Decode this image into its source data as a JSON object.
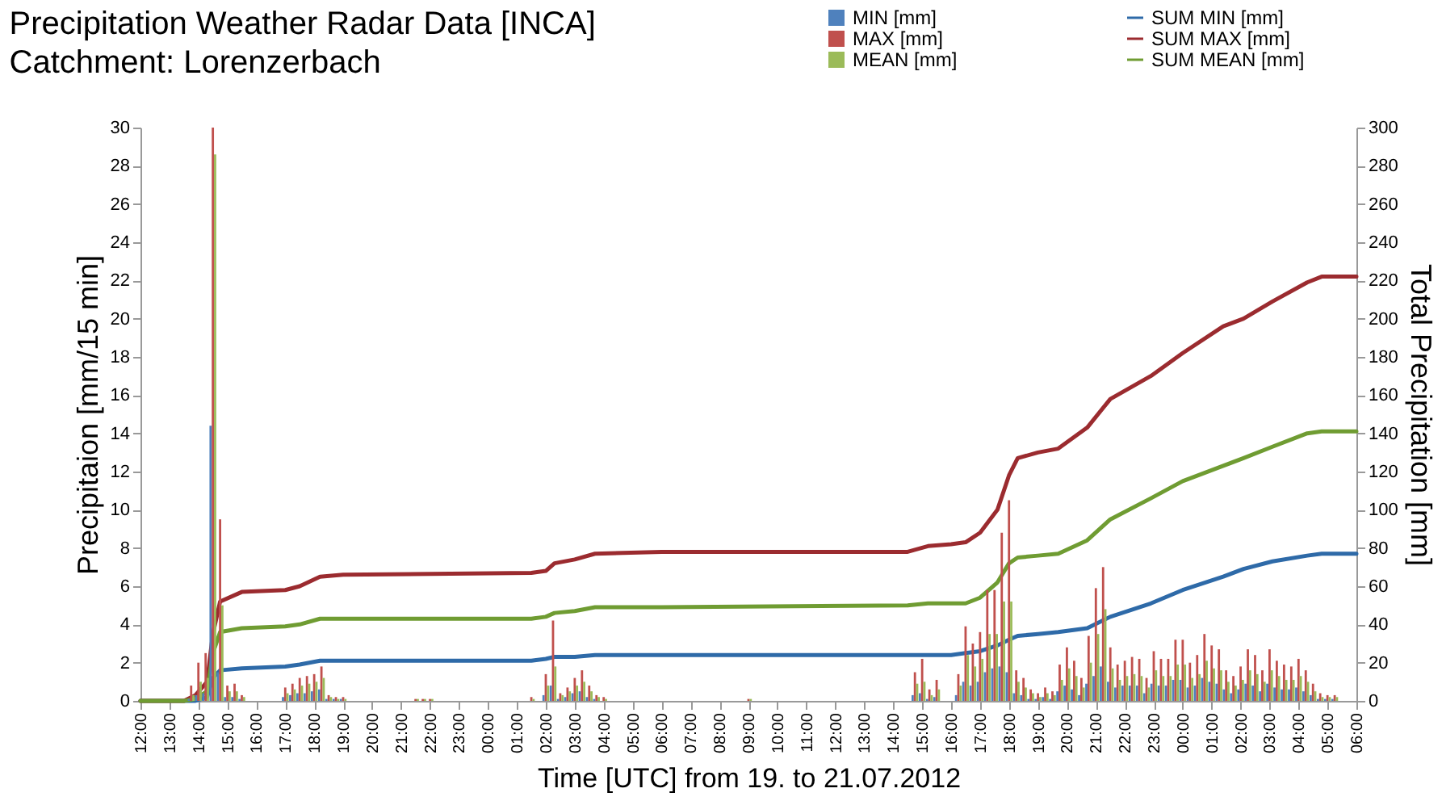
{
  "chart_data": {
    "type": "bar",
    "title": "Precipitation Weather Radar Data [INCA]",
    "subtitle": "Catchment: Lorenzerbach",
    "xlabel": "Time [UTC] from 19. to 21.07.2012",
    "ylabel": "Precipitaion [mm/15 min]",
    "y2label": "Total Precipitation [mm]",
    "xlim": [
      "2012-07-19T12:00",
      "2012-07-21T06:00"
    ],
    "xticks": [
      {
        "value": "2012-07-19T12:00",
        "label": "12:00"
      },
      {
        "value": "2012-07-19T13:00",
        "label": "13:00"
      },
      {
        "value": "2012-07-19T14:00",
        "label": "14:00"
      },
      {
        "value": "2012-07-19T15:00",
        "label": "15:00"
      },
      {
        "value": "2012-07-19T16:00",
        "label": "16:00"
      },
      {
        "value": "2012-07-19T17:00",
        "label": "17:00"
      },
      {
        "value": "2012-07-19T18:00",
        "label": "18:00"
      },
      {
        "value": "2012-07-19T19:00",
        "label": "19:00"
      },
      {
        "value": "2012-07-19T20:00",
        "label": "20:00"
      },
      {
        "value": "2012-07-19T21:00",
        "label": "21:00"
      },
      {
        "value": "2012-07-19T22:00",
        "label": "22:00"
      },
      {
        "value": "2012-07-19T23:00",
        "label": "23:00"
      },
      {
        "value": "2012-07-20T00:00",
        "label": "00:00"
      },
      {
        "value": "2012-07-20T01:00",
        "label": "01:00"
      },
      {
        "value": "2012-07-20T02:00",
        "label": "02:00"
      },
      {
        "value": "2012-07-20T03:00",
        "label": "03:00"
      },
      {
        "value": "2012-07-20T04:00",
        "label": "04:00"
      },
      {
        "value": "2012-07-20T05:00",
        "label": "05:00"
      },
      {
        "value": "2012-07-20T06:00",
        "label": "06:00"
      },
      {
        "value": "2012-07-20T07:00",
        "label": "07:00"
      },
      {
        "value": "2012-07-20T08:00",
        "label": "08:00"
      },
      {
        "value": "2012-07-20T09:00",
        "label": "09:00"
      },
      {
        "value": "2012-07-20T10:00",
        "label": "10:00"
      },
      {
        "value": "2012-07-20T11:00",
        "label": "11:00"
      },
      {
        "value": "2012-07-20T12:00",
        "label": "12:00"
      },
      {
        "value": "2012-07-20T13:00",
        "label": "13:00"
      },
      {
        "value": "2012-07-20T14:00",
        "label": "14:00"
      },
      {
        "value": "2012-07-20T15:00",
        "label": "15:00"
      },
      {
        "value": "2012-07-20T16:00",
        "label": "16:00"
      },
      {
        "value": "2012-07-20T17:00",
        "label": "17:00"
      },
      {
        "value": "2012-07-20T18:00",
        "label": "18:00"
      },
      {
        "value": "2012-07-20T19:00",
        "label": "19:00"
      },
      {
        "value": "2012-07-20T20:00",
        "label": "20:00"
      },
      {
        "value": "2012-07-20T21:00",
        "label": "21:00"
      },
      {
        "value": "2012-07-20T22:00",
        "label": "22:00"
      },
      {
        "value": "2012-07-20T23:00",
        "label": "23:00"
      },
      {
        "value": "2012-07-21T00:00",
        "label": "00:00"
      },
      {
        "value": "2012-07-21T01:00",
        "label": "01:00"
      },
      {
        "value": "2012-07-21T02:00",
        "label": "02:00"
      },
      {
        "value": "2012-07-21T03:00",
        "label": "03:00"
      },
      {
        "value": "2012-07-21T04:00",
        "label": "04:00"
      },
      {
        "value": "2012-07-21T05:00",
        "label": "05:00"
      },
      {
        "value": "2012-07-21T06:00",
        "label": "06:00"
      }
    ],
    "ylim": [
      0,
      30
    ],
    "yticks": [
      0,
      2,
      4,
      6,
      8,
      10,
      12,
      14,
      16,
      18,
      20,
      22,
      24,
      26,
      28,
      30
    ],
    "y2lim": [
      0,
      300
    ],
    "y2ticks": [
      0,
      20,
      40,
      60,
      80,
      100,
      120,
      140,
      160,
      180,
      200,
      220,
      240,
      260,
      280,
      300
    ],
    "grid": false,
    "legend": "top right",
    "x": [
      "2012-07-19T13:45",
      "2012-07-19T14:00",
      "2012-07-19T14:15",
      "2012-07-19T14:30",
      "2012-07-19T14:45",
      "2012-07-19T15:00",
      "2012-07-19T15:15",
      "2012-07-19T15:30",
      "2012-07-19T17:00",
      "2012-07-19T17:15",
      "2012-07-19T17:30",
      "2012-07-19T17:45",
      "2012-07-19T18:00",
      "2012-07-19T18:15",
      "2012-07-19T18:30",
      "2012-07-19T18:45",
      "2012-07-19T19:00",
      "2012-07-19T21:30",
      "2012-07-19T21:45",
      "2012-07-19T22:00",
      "2012-07-20T01:30",
      "2012-07-20T02:00",
      "2012-07-20T02:15",
      "2012-07-20T02:30",
      "2012-07-20T02:45",
      "2012-07-20T03:00",
      "2012-07-20T03:15",
      "2012-07-20T03:30",
      "2012-07-20T03:45",
      "2012-07-20T04:00",
      "2012-07-20T09:00",
      "2012-07-20T14:45",
      "2012-07-20T15:00",
      "2012-07-20T15:15",
      "2012-07-20T15:30",
      "2012-07-20T16:15",
      "2012-07-20T16:30",
      "2012-07-20T16:45",
      "2012-07-20T17:00",
      "2012-07-20T17:15",
      "2012-07-20T17:30",
      "2012-07-20T17:45",
      "2012-07-20T18:00",
      "2012-07-20T18:15",
      "2012-07-20T18:30",
      "2012-07-20T18:45",
      "2012-07-20T19:00",
      "2012-07-20T19:15",
      "2012-07-20T19:30",
      "2012-07-20T19:45",
      "2012-07-20T20:00",
      "2012-07-20T20:15",
      "2012-07-20T20:30",
      "2012-07-20T20:45",
      "2012-07-20T21:00",
      "2012-07-20T21:15",
      "2012-07-20T21:30",
      "2012-07-20T21:45",
      "2012-07-20T22:00",
      "2012-07-20T22:15",
      "2012-07-20T22:30",
      "2012-07-20T22:45",
      "2012-07-20T23:00",
      "2012-07-20T23:15",
      "2012-07-20T23:30",
      "2012-07-20T23:45",
      "2012-07-21T00:00",
      "2012-07-21T00:15",
      "2012-07-21T00:30",
      "2012-07-21T00:45",
      "2012-07-21T01:00",
      "2012-07-21T01:15",
      "2012-07-21T01:30",
      "2012-07-21T01:45",
      "2012-07-21T02:00",
      "2012-07-21T02:15",
      "2012-07-21T02:30",
      "2012-07-21T02:45",
      "2012-07-21T03:00",
      "2012-07-21T03:15",
      "2012-07-21T03:30",
      "2012-07-21T03:45",
      "2012-07-21T04:00",
      "2012-07-21T04:15",
      "2012-07-21T04:30",
      "2012-07-21T04:45",
      "2012-07-21T05:00",
      "2012-07-21T05:15"
    ],
    "series": [
      {
        "name": "MIN [mm]",
        "color": "#4f81bd",
        "values": [
          0.1,
          0.3,
          0.4,
          14.4,
          1.5,
          0.2,
          0.2,
          0.1,
          0.2,
          0.3,
          0.4,
          0.4,
          0.5,
          0.6,
          0.1,
          0.1,
          0.1,
          0,
          0,
          0,
          0,
          0.3,
          0.8,
          0.1,
          0.2,
          0.4,
          0.5,
          0.2,
          0.1,
          0,
          0,
          0.3,
          0.4,
          0.1,
          0.2,
          0.3,
          1.0,
          0.8,
          1.0,
          1.5,
          1.7,
          1.8,
          1.5,
          0.4,
          0.3,
          0.1,
          0.1,
          0.2,
          0.1,
          0.5,
          0.8,
          0.6,
          0.3,
          0.9,
          1.3,
          1.8,
          1.0,
          0.7,
          0.8,
          0.8,
          0.8,
          0.4,
          0.9,
          0.8,
          0.8,
          1.1,
          1.1,
          0.7,
          0.8,
          1.2,
          1.0,
          0.9,
          0.6,
          0.4,
          0.6,
          0.9,
          0.8,
          0.5,
          0.9,
          0.7,
          0.6,
          0.6,
          0.7,
          0.5,
          0.3,
          0.1,
          0.1,
          0.1
        ]
      },
      {
        "name": "MAX [mm]",
        "color": "#c0504d",
        "values": [
          0.8,
          2.0,
          2.5,
          30,
          9.5,
          0.8,
          0.9,
          0.3,
          0.7,
          0.9,
          1.2,
          1.3,
          1.4,
          1.8,
          0.3,
          0.2,
          0.2,
          0.1,
          0.1,
          0.1,
          0.2,
          1.4,
          4.2,
          0.4,
          0.7,
          1.2,
          1.6,
          0.8,
          0.3,
          0.2,
          0.1,
          1.5,
          2.2,
          0.6,
          1.1,
          1.4,
          3.9,
          3.0,
          3.6,
          5.8,
          5.8,
          8.8,
          10.5,
          1.6,
          1.2,
          0.6,
          0.4,
          0.7,
          0.5,
          1.9,
          2.8,
          2.1,
          1.2,
          3.4,
          5.9,
          7.0,
          2.8,
          1.9,
          2.1,
          2.3,
          2.2,
          1.2,
          2.6,
          2.2,
          2.2,
          3.2,
          3.2,
          2.0,
          2.4,
          3.5,
          2.9,
          2.7,
          1.6,
          1.3,
          1.8,
          2.7,
          2.4,
          1.6,
          2.7,
          2.1,
          1.9,
          1.8,
          2.2,
          1.6,
          0.9,
          0.4,
          0.3,
          0.3
        ]
      },
      {
        "name": "MEAN [mm]",
        "color": "#9bbb59",
        "values": [
          0.3,
          1.0,
          1.2,
          28.6,
          5.0,
          0.5,
          0.5,
          0.2,
          0.4,
          0.6,
          0.8,
          0.9,
          1.0,
          1.2,
          0.2,
          0.1,
          0.1,
          0.1,
          0.1,
          0.1,
          0.1,
          0.8,
          1.8,
          0.3,
          0.5,
          0.8,
          1.0,
          0.5,
          0.2,
          0.1,
          0.1,
          0.9,
          1.0,
          0.3,
          0.6,
          0.8,
          2.4,
          1.8,
          2.2,
          3.5,
          3.5,
          5.2,
          5.2,
          1.0,
          0.7,
          0.4,
          0.2,
          0.4,
          0.3,
          1.1,
          1.7,
          1.3,
          0.7,
          2.0,
          3.5,
          4.8,
          1.7,
          1.1,
          1.3,
          1.4,
          1.3,
          0.7,
          1.6,
          1.3,
          1.3,
          1.9,
          1.9,
          1.2,
          1.4,
          2.1,
          1.7,
          1.6,
          1.0,
          0.8,
          1.1,
          1.6,
          1.4,
          1.0,
          1.6,
          1.3,
          1.1,
          1.1,
          1.3,
          1.0,
          0.5,
          0.2,
          0.2,
          0.2
        ]
      },
      {
        "name": "SUM MIN [mm]",
        "type": "line",
        "axis": "y2",
        "color": "#2e6aa8",
        "x": [
          "2012-07-19T12:00",
          "2012-07-19T13:30",
          "2012-07-19T13:54",
          "2012-07-19T14:18",
          "2012-07-19T14:30",
          "2012-07-19T14:45",
          "2012-07-19T15:30",
          "2012-07-19T17:00",
          "2012-07-19T17:30",
          "2012-07-19T18:12",
          "2012-07-19T19:00",
          "2012-07-20T01:30",
          "2012-07-20T02:00",
          "2012-07-20T02:18",
          "2012-07-20T03:00",
          "2012-07-20T03:42",
          "2012-07-20T06:00",
          "2012-07-20T14:30",
          "2012-07-20T15:12",
          "2012-07-20T16:00",
          "2012-07-20T16:30",
          "2012-07-20T17:00",
          "2012-07-20T17:36",
          "2012-07-20T18:00",
          "2012-07-20T18:18",
          "2012-07-20T19:00",
          "2012-07-20T19:42",
          "2012-07-20T20:42",
          "2012-07-20T21:30",
          "2012-07-20T22:54",
          "2012-07-21T00:00",
          "2012-07-21T01:24",
          "2012-07-21T02:06",
          "2012-07-21T03:06",
          "2012-07-21T04:18",
          "2012-07-21T04:48",
          "2012-07-21T06:00"
        ],
        "values": [
          0,
          0,
          0,
          2,
          12,
          16,
          17,
          18,
          19,
          21,
          21,
          21,
          22,
          23,
          23,
          24,
          24,
          24,
          24,
          24,
          25,
          26,
          29,
          32,
          34,
          35,
          36,
          38,
          44,
          51,
          58,
          65,
          69,
          73,
          76,
          77,
          77
        ]
      },
      {
        "name": "SUM MAX [mm]",
        "type": "line",
        "axis": "y2",
        "color": "#9b2b2f",
        "x": [
          "2012-07-19T12:00",
          "2012-07-19T13:30",
          "2012-07-19T13:54",
          "2012-07-19T14:18",
          "2012-07-19T14:30",
          "2012-07-19T14:45",
          "2012-07-19T15:30",
          "2012-07-19T17:00",
          "2012-07-19T17:30",
          "2012-07-19T18:12",
          "2012-07-19T19:00",
          "2012-07-20T01:30",
          "2012-07-20T02:00",
          "2012-07-20T02:18",
          "2012-07-20T03:00",
          "2012-07-20T03:42",
          "2012-07-20T06:00",
          "2012-07-20T14:30",
          "2012-07-20T15:12",
          "2012-07-20T16:00",
          "2012-07-20T16:30",
          "2012-07-20T17:00",
          "2012-07-20T17:36",
          "2012-07-20T18:00",
          "2012-07-20T18:18",
          "2012-07-20T19:00",
          "2012-07-20T19:42",
          "2012-07-20T20:42",
          "2012-07-20T21:30",
          "2012-07-20T22:54",
          "2012-07-21T00:00",
          "2012-07-21T01:24",
          "2012-07-21T02:06",
          "2012-07-21T03:06",
          "2012-07-21T04:18",
          "2012-07-21T04:48",
          "2012-07-21T06:00"
        ],
        "values": [
          0,
          0,
          3,
          10,
          35,
          52,
          57,
          58,
          60,
          65,
          66,
          67,
          68,
          72,
          74,
          77,
          78,
          78,
          81,
          82,
          83,
          88,
          100,
          118,
          127,
          130,
          132,
          143,
          158,
          170,
          182,
          196,
          200,
          209,
          219,
          222,
          222
        ]
      },
      {
        "name": "SUM MEAN [mm]",
        "type": "line",
        "axis": "y2",
        "color": "#6f9c32",
        "x": [
          "2012-07-19T12:00",
          "2012-07-19T13:30",
          "2012-07-19T13:54",
          "2012-07-19T14:18",
          "2012-07-19T14:30",
          "2012-07-19T14:45",
          "2012-07-19T15:30",
          "2012-07-19T17:00",
          "2012-07-19T17:30",
          "2012-07-19T18:12",
          "2012-07-19T19:00",
          "2012-07-20T01:30",
          "2012-07-20T02:00",
          "2012-07-20T02:18",
          "2012-07-20T03:00",
          "2012-07-20T03:42",
          "2012-07-20T06:00",
          "2012-07-20T14:30",
          "2012-07-20T15:12",
          "2012-07-20T16:00",
          "2012-07-20T16:30",
          "2012-07-20T17:00",
          "2012-07-20T17:36",
          "2012-07-20T18:00",
          "2012-07-20T18:18",
          "2012-07-20T19:00",
          "2012-07-20T19:42",
          "2012-07-20T20:42",
          "2012-07-20T21:30",
          "2012-07-20T22:54",
          "2012-07-21T00:00",
          "2012-07-21T01:24",
          "2012-07-21T02:06",
          "2012-07-21T03:06",
          "2012-07-21T04:18",
          "2012-07-21T04:48",
          "2012-07-21T06:00"
        ],
        "values": [
          0,
          0,
          1,
          5,
          25,
          36,
          38,
          39,
          40,
          43,
          43,
          43,
          44,
          46,
          47,
          49,
          49,
          50,
          51,
          51,
          51,
          54,
          62,
          72,
          75,
          76,
          77,
          84,
          95,
          106,
          115,
          123,
          127,
          133,
          140,
          141,
          141
        ]
      }
    ]
  }
}
